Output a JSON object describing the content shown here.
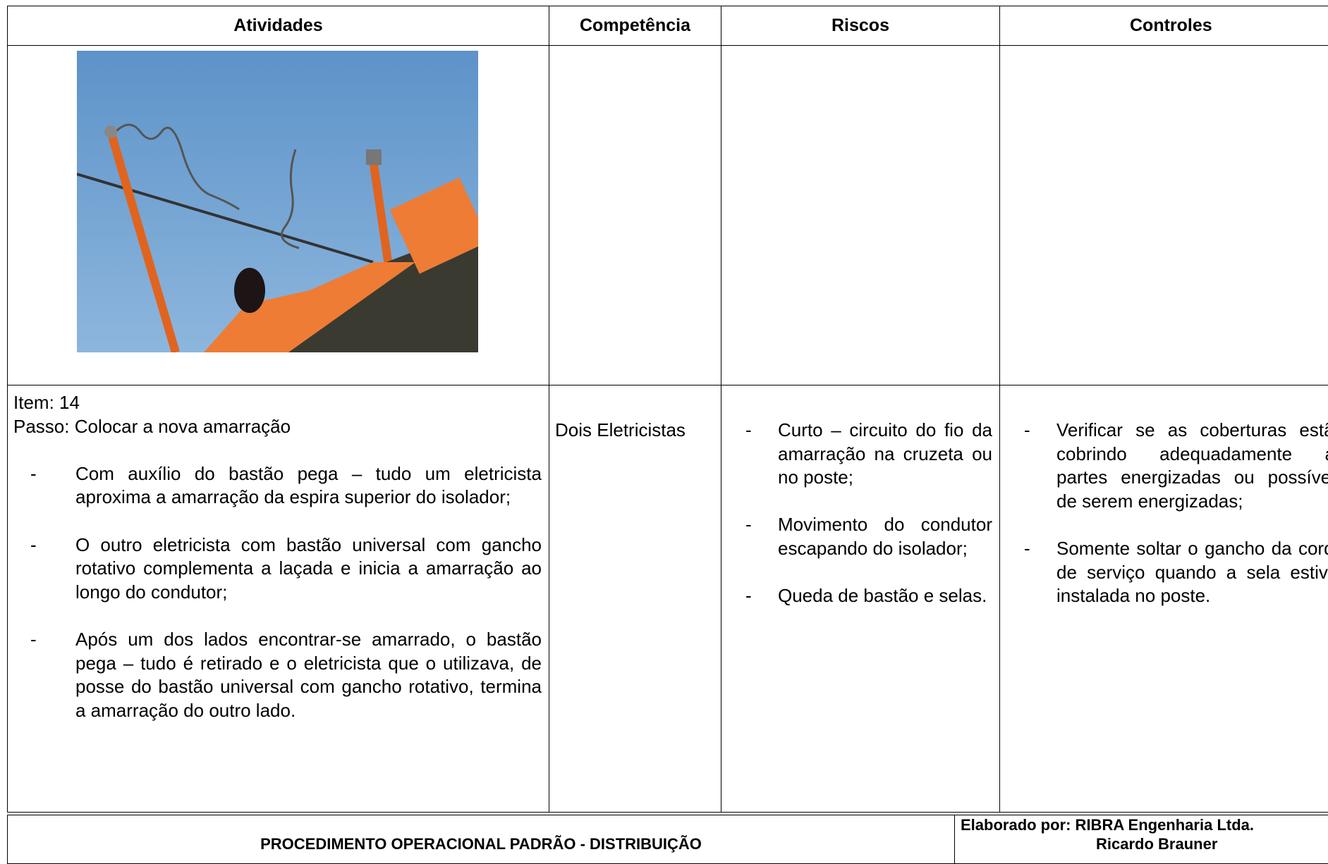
{
  "table": {
    "headers": [
      "Atividades",
      "Competência",
      "Riscos",
      "Controles"
    ],
    "list_marker": "-",
    "item": "Item: 14",
    "passo": "Passo: Colocar a nova amarração",
    "steps": [
      "Com auxílio do bastão pega – tudo um eletricista aproxima a amarração da espira superior do isolador;",
      "O outro eletricista com bastão universal com gancho rotativo complementa a laçada e inicia a amarração ao longo do condutor;",
      "Após um dos lados encontrar-se amarrado, o bastão pega – tudo é retirado e o eletricista que o utilizava, de posse do bastão universal com gancho rotativo, termina a amarração do outro lado."
    ],
    "competencia": "Dois Eletricistas",
    "riscos": [
      "Curto – circuito do fio da amarração na cruzeta ou no poste;",
      "Movimento do condutor escapando do isolador;",
      "Queda de bastão e selas."
    ],
    "controles": [
      "Verificar se as coberturas estão cobrindo adequadamente as partes energizadas ou possíveis de serem energizadas;",
      "Somente soltar o gancho da corda de serviço quando a sela estiver instalada no poste."
    ]
  },
  "footer": {
    "title": "PROCEDIMENTO OPERACIONAL PADRÃO - DISTRIBUIÇÃO",
    "elaborado": "Elaborado por: RIBRA Engenharia Ltda.",
    "autor": "Ricardo Brauner"
  }
}
